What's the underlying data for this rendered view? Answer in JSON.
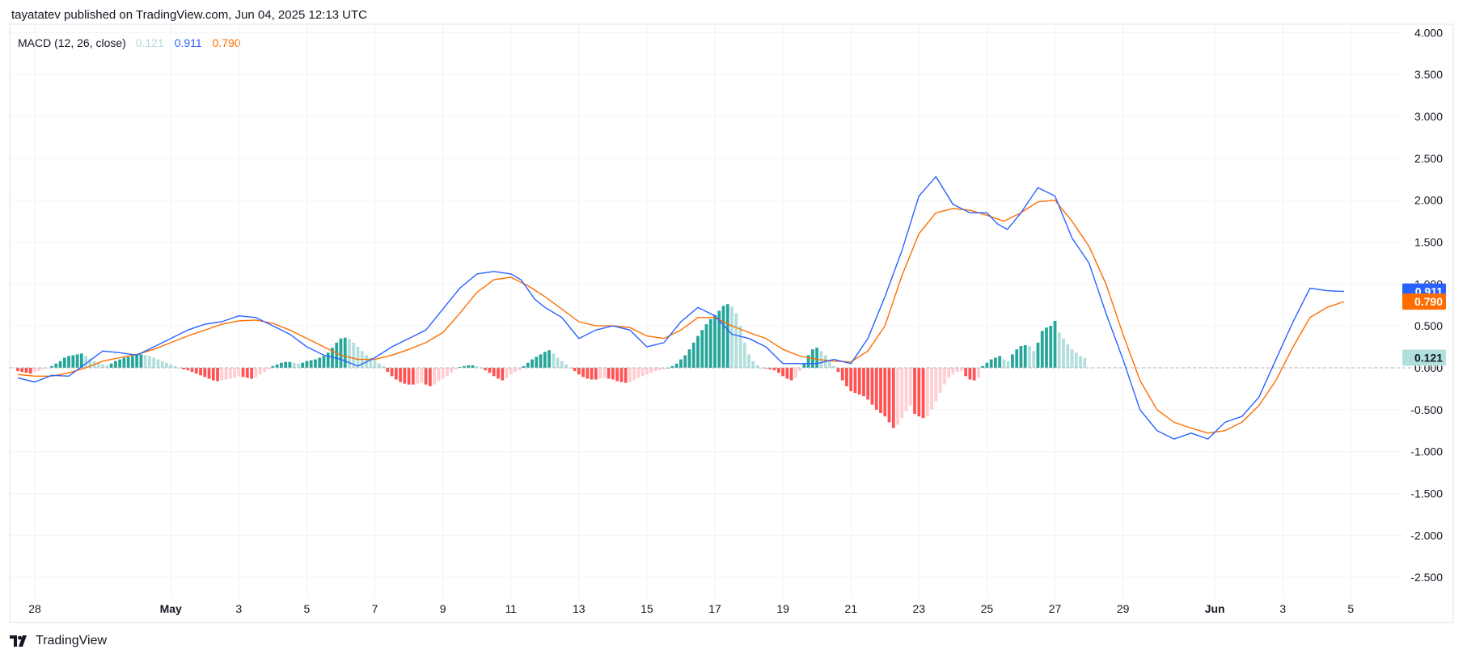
{
  "header": {
    "publisher": "tayatatev published on TradingView.com, Jun 04, 2025 12:13 UTC"
  },
  "indicator": {
    "label": "MACD (12, 26, close)",
    "hist_value": "0.121",
    "macd_value": "0.911",
    "signal_value": "0.790"
  },
  "footer": {
    "brand": "TradingView"
  },
  "colors": {
    "macd_line": "#2962ff",
    "signal_line": "#ff6d00",
    "hist_up_strong": "#26a69a",
    "hist_up_weak": "#b2dfdb",
    "hist_down_strong": "#ff5252",
    "hist_down_weak": "#ffcdd2"
  },
  "chart_data": {
    "type": "line",
    "title": "MACD (12, 26, close)",
    "ylim": [
      -2.75,
      4.1
    ],
    "y_ticks": [
      "4.000",
      "3.500",
      "3.000",
      "2.500",
      "2.000",
      "1.500",
      "1.000",
      "0.500",
      "0.000",
      "-0.500",
      "-1.000",
      "-1.500",
      "-2.000",
      "-2.500"
    ],
    "x_ticks": [
      {
        "label": "28",
        "x": 0,
        "bold": false
      },
      {
        "label": "May",
        "x": 4,
        "bold": true
      },
      {
        "label": "3",
        "x": 6,
        "bold": false
      },
      {
        "label": "5",
        "x": 8,
        "bold": false
      },
      {
        "label": "7",
        "x": 10,
        "bold": false
      },
      {
        "label": "9",
        "x": 12,
        "bold": false
      },
      {
        "label": "11",
        "x": 14,
        "bold": false
      },
      {
        "label": "13",
        "x": 16,
        "bold": false
      },
      {
        "label": "15",
        "x": 18,
        "bold": false
      },
      {
        "label": "17",
        "x": 20,
        "bold": false
      },
      {
        "label": "19",
        "x": 22,
        "bold": false
      },
      {
        "label": "21",
        "x": 24,
        "bold": false
      },
      {
        "label": "23",
        "x": 26,
        "bold": false
      },
      {
        "label": "25",
        "x": 28,
        "bold": false
      },
      {
        "label": "27",
        "x": 30,
        "bold": false
      },
      {
        "label": "29",
        "x": 32,
        "bold": false
      },
      {
        "label": "Jun",
        "x": 34.7,
        "bold": true
      },
      {
        "label": "3",
        "x": 36.7,
        "bold": false
      },
      {
        "label": "5",
        "x": 38.7,
        "bold": false
      }
    ],
    "x_range": [
      -0.5,
      40
    ],
    "grid": true,
    "series": [
      {
        "name": "MACD",
        "points": [
          [
            -0.5,
            -0.12
          ],
          [
            0,
            -0.17
          ],
          [
            0.5,
            -0.09
          ],
          [
            1,
            -0.1
          ],
          [
            1.5,
            0.05
          ],
          [
            2,
            0.2
          ],
          [
            2.5,
            0.18
          ],
          [
            3,
            0.15
          ],
          [
            3.5,
            0.25
          ],
          [
            4,
            0.35
          ],
          [
            4.5,
            0.45
          ],
          [
            5,
            0.52
          ],
          [
            5.5,
            0.55
          ],
          [
            6,
            0.62
          ],
          [
            6.5,
            0.6
          ],
          [
            7,
            0.5
          ],
          [
            7.5,
            0.4
          ],
          [
            8,
            0.25
          ],
          [
            8.5,
            0.15
          ],
          [
            9,
            0.1
          ],
          [
            9.5,
            0.02
          ],
          [
            10,
            0.12
          ],
          [
            10.5,
            0.25
          ],
          [
            11,
            0.35
          ],
          [
            11.5,
            0.45
          ],
          [
            12,
            0.7
          ],
          [
            12.5,
            0.95
          ],
          [
            13,
            1.12
          ],
          [
            13.5,
            1.15
          ],
          [
            14,
            1.12
          ],
          [
            14.3,
            1.05
          ],
          [
            14.7,
            0.82
          ],
          [
            15,
            0.72
          ],
          [
            15.5,
            0.6
          ],
          [
            16,
            0.35
          ],
          [
            16.5,
            0.45
          ],
          [
            17,
            0.5
          ],
          [
            17.5,
            0.45
          ],
          [
            18,
            0.25
          ],
          [
            18.5,
            0.3
          ],
          [
            19,
            0.55
          ],
          [
            19.5,
            0.72
          ],
          [
            20,
            0.62
          ],
          [
            20.5,
            0.4
          ],
          [
            21,
            0.35
          ],
          [
            21.5,
            0.25
          ],
          [
            22,
            0.05
          ],
          [
            22.5,
            0.05
          ],
          [
            23,
            0.05
          ],
          [
            23.5,
            0.1
          ],
          [
            24,
            0.05
          ],
          [
            24.5,
            0.35
          ],
          [
            25,
            0.85
          ],
          [
            25.5,
            1.4
          ],
          [
            26,
            2.05
          ],
          [
            26.5,
            2.28
          ],
          [
            27,
            1.95
          ],
          [
            27.5,
            1.85
          ],
          [
            28,
            1.85
          ],
          [
            28.3,
            1.72
          ],
          [
            28.6,
            1.65
          ],
          [
            29,
            1.85
          ],
          [
            29.5,
            2.15
          ],
          [
            30,
            2.05
          ],
          [
            30.5,
            1.55
          ],
          [
            31,
            1.25
          ],
          [
            31.5,
            0.65
          ],
          [
            32,
            0.1
          ],
          [
            32.5,
            -0.5
          ],
          [
            33,
            -0.75
          ],
          [
            33.5,
            -0.85
          ],
          [
            34,
            -0.78
          ],
          [
            34.5,
            -0.85
          ],
          [
            35,
            -0.65
          ],
          [
            35.5,
            -0.58
          ],
          [
            36,
            -0.35
          ],
          [
            36.5,
            0.1
          ],
          [
            37,
            0.55
          ],
          [
            37.5,
            0.95
          ],
          [
            38,
            0.92
          ],
          [
            38.5,
            0.91
          ]
        ]
      },
      {
        "name": "Signal",
        "points": [
          [
            -0.5,
            -0.08
          ],
          [
            0,
            -0.1
          ],
          [
            0.5,
            -0.1
          ],
          [
            1,
            -0.06
          ],
          [
            1.5,
            0.0
          ],
          [
            2,
            0.08
          ],
          [
            2.5,
            0.12
          ],
          [
            3,
            0.16
          ],
          [
            3.5,
            0.22
          ],
          [
            4,
            0.3
          ],
          [
            4.5,
            0.38
          ],
          [
            5,
            0.45
          ],
          [
            5.5,
            0.52
          ],
          [
            6,
            0.56
          ],
          [
            6.5,
            0.57
          ],
          [
            7,
            0.53
          ],
          [
            7.5,
            0.45
          ],
          [
            8,
            0.35
          ],
          [
            8.5,
            0.25
          ],
          [
            9,
            0.15
          ],
          [
            9.5,
            0.1
          ],
          [
            10,
            0.1
          ],
          [
            10.5,
            0.15
          ],
          [
            11,
            0.22
          ],
          [
            11.5,
            0.3
          ],
          [
            12,
            0.42
          ],
          [
            12.5,
            0.65
          ],
          [
            13,
            0.9
          ],
          [
            13.5,
            1.05
          ],
          [
            14,
            1.08
          ],
          [
            14.5,
            0.98
          ],
          [
            15,
            0.85
          ],
          [
            15.5,
            0.7
          ],
          [
            16,
            0.55
          ],
          [
            16.5,
            0.5
          ],
          [
            17,
            0.5
          ],
          [
            17.5,
            0.48
          ],
          [
            18,
            0.38
          ],
          [
            18.5,
            0.35
          ],
          [
            19,
            0.45
          ],
          [
            19.5,
            0.6
          ],
          [
            20,
            0.6
          ],
          [
            20.5,
            0.5
          ],
          [
            21,
            0.42
          ],
          [
            21.5,
            0.35
          ],
          [
            22,
            0.22
          ],
          [
            22.5,
            0.14
          ],
          [
            23,
            0.1
          ],
          [
            23.5,
            0.08
          ],
          [
            24,
            0.07
          ],
          [
            24.5,
            0.2
          ],
          [
            25,
            0.5
          ],
          [
            25.5,
            1.1
          ],
          [
            26,
            1.6
          ],
          [
            26.5,
            1.85
          ],
          [
            27,
            1.9
          ],
          [
            27.5,
            1.88
          ],
          [
            28,
            1.82
          ],
          [
            28.5,
            1.75
          ],
          [
            29,
            1.85
          ],
          [
            29.5,
            1.98
          ],
          [
            30,
            2.0
          ],
          [
            30.5,
            1.75
          ],
          [
            31,
            1.45
          ],
          [
            31.5,
            1.0
          ],
          [
            32,
            0.4
          ],
          [
            32.5,
            -0.15
          ],
          [
            33,
            -0.5
          ],
          [
            33.5,
            -0.65
          ],
          [
            34,
            -0.72
          ],
          [
            34.5,
            -0.78
          ],
          [
            35,
            -0.75
          ],
          [
            35.5,
            -0.65
          ],
          [
            36,
            -0.45
          ],
          [
            36.5,
            -0.15
          ],
          [
            37,
            0.25
          ],
          [
            37.5,
            0.6
          ],
          [
            38,
            0.72
          ],
          [
            38.5,
            0.79
          ]
        ]
      }
    ],
    "histogram": {
      "name": "Histogram",
      "x_start": -0.5,
      "step": 0.125,
      "values": [
        -0.04,
        -0.05,
        -0.06,
        -0.07,
        -0.05,
        -0.04,
        -0.02,
        -0.01,
        0.02,
        0.05,
        0.08,
        0.12,
        0.14,
        0.15,
        0.16,
        0.17,
        0.14,
        0.11,
        0.08,
        0.06,
        0.04,
        0.03,
        0.05,
        0.08,
        0.1,
        0.12,
        0.13,
        0.14,
        0.15,
        0.16,
        0.15,
        0.14,
        0.12,
        0.1,
        0.08,
        0.06,
        0.04,
        0.02,
        0.0,
        -0.02,
        -0.03,
        -0.05,
        -0.07,
        -0.09,
        -0.11,
        -0.13,
        -0.15,
        -0.16,
        -0.15,
        -0.14,
        -0.13,
        -0.12,
        -0.1,
        -0.11,
        -0.12,
        -0.13,
        -0.11,
        -0.08,
        -0.05,
        -0.02,
        0.02,
        0.04,
        0.06,
        0.07,
        0.07,
        0.06,
        0.05,
        0.06,
        0.08,
        0.09,
        0.1,
        0.12,
        0.14,
        0.18,
        0.24,
        0.3,
        0.35,
        0.36,
        0.34,
        0.3,
        0.25,
        0.2,
        0.15,
        0.12,
        0.09,
        0.05,
        0.02,
        -0.05,
        -0.1,
        -0.14,
        -0.17,
        -0.19,
        -0.2,
        -0.2,
        -0.19,
        -0.18,
        -0.2,
        -0.22,
        -0.2,
        -0.16,
        -0.13,
        -0.1,
        -0.06,
        -0.02,
        0.01,
        0.02,
        0.03,
        0.03,
        0.02,
        0.0,
        -0.03,
        -0.06,
        -0.1,
        -0.13,
        -0.15,
        -0.12,
        -0.08,
        -0.05,
        -0.03,
        0.02,
        0.06,
        0.1,
        0.13,
        0.16,
        0.19,
        0.21,
        0.17,
        0.12,
        0.08,
        0.04,
        0.0,
        -0.04,
        -0.08,
        -0.11,
        -0.13,
        -0.14,
        -0.14,
        -0.13,
        -0.12,
        -0.13,
        -0.14,
        -0.16,
        -0.17,
        -0.18,
        -0.17,
        -0.15,
        -0.12,
        -0.1,
        -0.08,
        -0.06,
        -0.04,
        -0.03,
        -0.02,
        0.0,
        0.02,
        0.05,
        0.1,
        0.15,
        0.22,
        0.3,
        0.38,
        0.45,
        0.52,
        0.58,
        0.63,
        0.68,
        0.74,
        0.76,
        0.73,
        0.65,
        0.5,
        0.3,
        0.16,
        0.08,
        0.03,
        0.0,
        -0.01,
        -0.02,
        -0.03,
        -0.06,
        -0.1,
        -0.13,
        -0.15,
        -0.12,
        -0.04,
        0.05,
        0.15,
        0.22,
        0.24,
        0.2,
        0.15,
        0.08,
        0.02,
        -0.05,
        -0.15,
        -0.22,
        -0.28,
        -0.3,
        -0.32,
        -0.34,
        -0.38,
        -0.44,
        -0.5,
        -0.54,
        -0.58,
        -0.65,
        -0.72,
        -0.68,
        -0.6,
        -0.52,
        -0.45,
        -0.55,
        -0.58,
        -0.6,
        -0.58,
        -0.5,
        -0.4,
        -0.3,
        -0.2,
        -0.12,
        -0.08,
        -0.05,
        -0.04,
        -0.1,
        -0.14,
        -0.15,
        -0.12,
        0.02,
        0.06,
        0.1,
        0.12,
        0.14,
        0.1,
        0.08,
        0.16,
        0.22,
        0.26,
        0.27,
        0.26,
        0.2,
        0.3,
        0.44,
        0.48,
        0.5,
        0.56,
        0.42,
        0.35,
        0.28,
        0.22,
        0.18,
        0.14,
        0.12
      ]
    }
  }
}
